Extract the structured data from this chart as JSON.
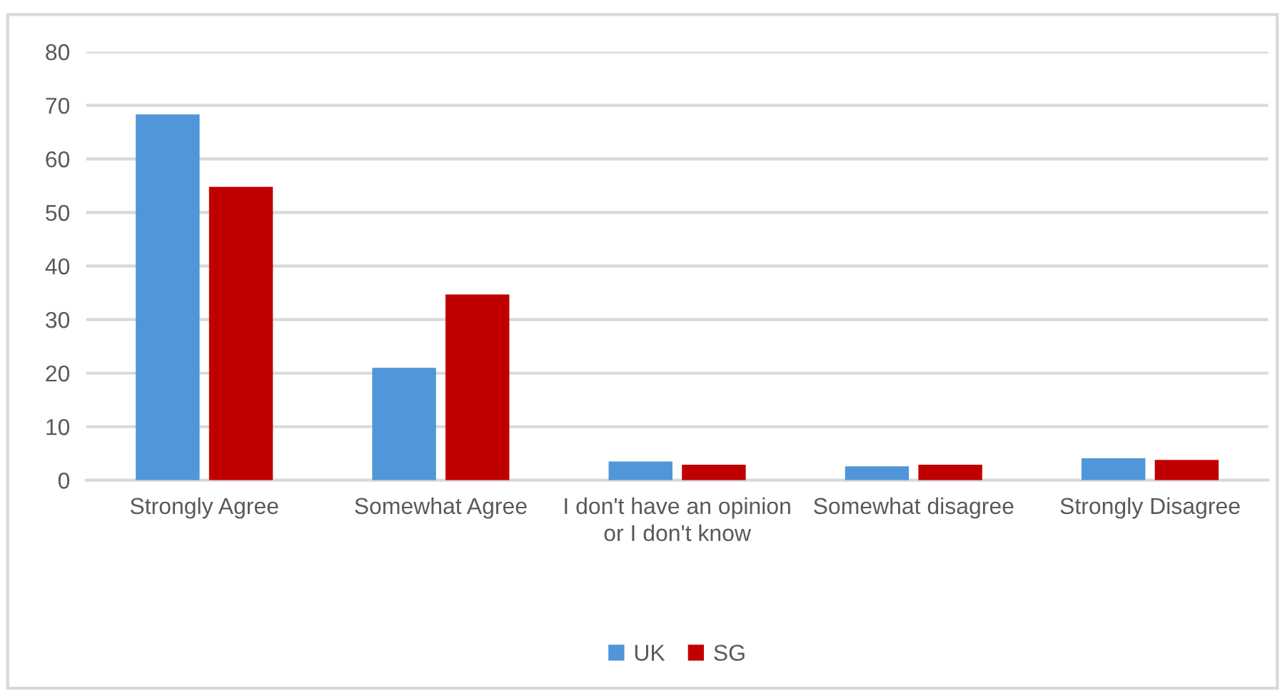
{
  "chart_data": {
    "type": "bar",
    "categories": [
      "Strongly Agree",
      "Somewhat Agree",
      "I don't have an opinion or I don't know",
      "Somewhat disagree",
      "Strongly Disagree"
    ],
    "series": [
      {
        "name": "UK",
        "color": "#5096d8",
        "values": [
          68.3,
          21,
          3.5,
          2.6,
          4.1
        ]
      },
      {
        "name": "SG",
        "color": "#c00000",
        "values": [
          54.8,
          34.7,
          2.9,
          2.9,
          3.8
        ]
      }
    ],
    "ylim": [
      0,
      80
    ],
    "yticks": [
      0,
      10,
      20,
      30,
      40,
      50,
      60,
      70,
      80
    ],
    "grid": "y",
    "legend": "bottom"
  }
}
